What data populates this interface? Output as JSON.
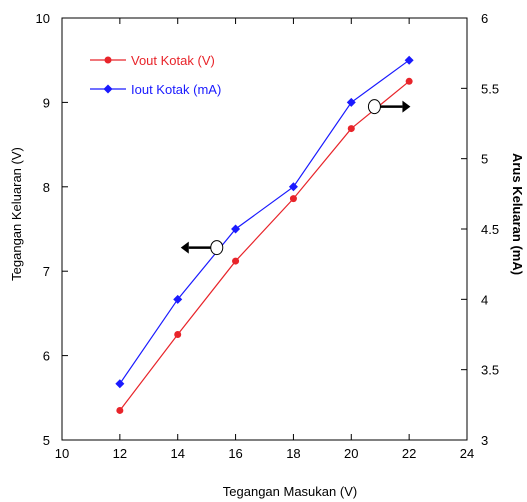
{
  "chart_data": {
    "type": "line",
    "title": "",
    "xlabel": "Tegangan Masukan (V)",
    "ylabel_left": "Tegangan Keluaran (V)",
    "ylabel_right": "Arus Keluaran (mA)",
    "xlim": [
      10,
      24
    ],
    "ylim_left": [
      5,
      10
    ],
    "ylim_right": [
      3,
      6
    ],
    "x_ticks": [
      "10",
      "12",
      "14",
      "16",
      "18",
      "20",
      "22",
      "24"
    ],
    "y_left_ticks": [
      "5",
      "6",
      "7",
      "8",
      "9",
      "10"
    ],
    "y_right_ticks": [
      "3",
      "3.5",
      "4",
      "4.5",
      "5",
      "5.5",
      "6"
    ],
    "grid": false,
    "legend_position": "top-left",
    "series": [
      {
        "name": "Vout Kotak (V)",
        "axis": "left",
        "color": "#e8242a",
        "marker": "circle",
        "x": [
          12,
          14,
          16,
          18,
          20,
          22
        ],
        "y": [
          5.35,
          6.25,
          7.12,
          7.86,
          8.69,
          9.25
        ]
      },
      {
        "name": "Iout Kotak (mA)",
        "axis": "right",
        "color": "#1a1aff",
        "marker": "diamond",
        "x": [
          12,
          14,
          16,
          18,
          20,
          22
        ],
        "y": [
          3.4,
          4.0,
          4.5,
          4.8,
          5.4,
          5.7
        ]
      }
    ],
    "annotations": [
      {
        "type": "arrow-left",
        "series": "Vout Kotak (V)",
        "axis": "left",
        "x": 15.35,
        "y": 7.28
      },
      {
        "type": "arrow-right",
        "series": "Iout Kotak (mA)",
        "axis": "right",
        "x": 20.8,
        "y": 5.37
      }
    ]
  }
}
